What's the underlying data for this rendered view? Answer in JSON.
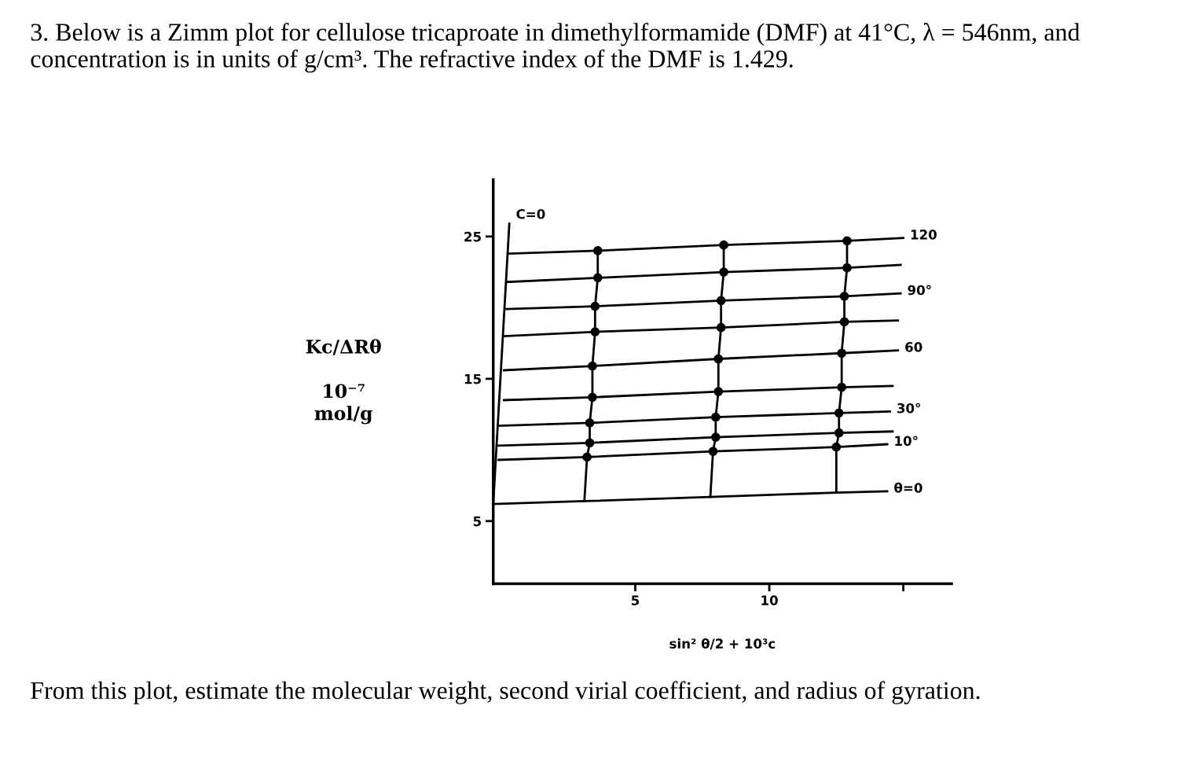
{
  "chart_data": {
    "type": "line",
    "title": "3. Below is a Zimm plot for cellulose tricaproate in dimethylformamide (DMF) at 41°C, λ = 546nm, and concentration is in units of g/cm³. The refractive index of the DMF is 1.429.",
    "xlabel": "sin² θ/2 + 10³c",
    "ylabel": "Kc/ΔRθ\n\n10⁻⁷\nmol/g",
    "xlim": [
      -0.3,
      16.8
    ],
    "ylim": [
      0.6,
      29
    ],
    "xticks": [
      5,
      10,
      {
        "value": 15,
        "label": null
      }
    ],
    "yticks": [
      5,
      15,
      25
    ],
    "grid": false,
    "legend": false,
    "series": [
      {
        "color": "#000000",
        "marker": "none",
        "x": [
          0.3,
          3.6,
          8.3,
          12.9,
          15.0
        ],
        "values": [
          23.8,
          24.0,
          24.4,
          24.7,
          24.9
        ]
      },
      {
        "color": "#000000",
        "marker": "none",
        "x": [
          0.2,
          3.6,
          8.3,
          12.9,
          14.9
        ],
        "values": [
          21.8,
          22.1,
          22.5,
          22.8,
          23.0
        ]
      },
      {
        "color": "#000000",
        "marker": "none",
        "x": [
          0.2,
          3.5,
          8.2,
          12.8,
          14.9
        ],
        "values": [
          19.9,
          20.1,
          20.5,
          20.8,
          21.0
        ]
      },
      {
        "color": "#000000",
        "marker": "none",
        "x": [
          0.1,
          3.5,
          8.2,
          12.8,
          14.8
        ],
        "values": [
          18.0,
          18.3,
          18.6,
          19.0,
          19.1
        ]
      },
      {
        "color": "#000000",
        "marker": "none",
        "x": [
          0.1,
          3.4,
          8.1,
          12.7,
          14.8
        ],
        "values": [
          15.6,
          15.9,
          16.4,
          16.8,
          17.0
        ]
      },
      {
        "color": "#000000",
        "marker": "none",
        "x": [
          0.1,
          3.4,
          8.1,
          12.7,
          14.6
        ],
        "values": [
          13.5,
          13.7,
          14.1,
          14.4,
          14.5
        ]
      },
      {
        "color": "#000000",
        "marker": "none",
        "x": [
          -0.1,
          3.3,
          8.0,
          12.6,
          14.5
        ],
        "values": [
          11.7,
          11.9,
          12.3,
          12.6,
          12.7
        ]
      },
      {
        "color": "#000000",
        "marker": "none",
        "x": [
          -0.1,
          3.3,
          8.0,
          12.6,
          14.6
        ],
        "values": [
          10.3,
          10.5,
          10.9,
          11.2,
          11.3
        ]
      },
      {
        "color": "#000000",
        "marker": "none",
        "x": [
          -0.1,
          3.2,
          7.9,
          12.5,
          14.4
        ],
        "values": [
          9.3,
          9.5,
          9.9,
          10.2,
          10.4
        ]
      },
      {
        "color": "#000000",
        "marker": "none",
        "x": [
          -0.3,
          3.1,
          7.8,
          12.5,
          14.4
        ],
        "values": [
          6.2,
          6.4,
          6.7,
          7.0,
          7.1
        ]
      },
      {
        "color": "#000000",
        "marker": "none",
        "x": [
          0.3,
          -0.3
        ],
        "values": [
          25.9,
          6.2
        ]
      },
      {
        "color": "#000000",
        "marker": "none",
        "x": [
          3.6,
          3.6,
          3.5,
          3.5,
          3.4,
          3.4,
          3.3,
          3.3,
          3.2,
          3.1
        ],
        "values": [
          24.0,
          22.1,
          20.1,
          18.3,
          15.9,
          13.7,
          11.9,
          10.5,
          9.5,
          6.4
        ]
      },
      {
        "color": "#000000",
        "marker": "none",
        "x": [
          8.3,
          8.3,
          8.2,
          8.2,
          8.1,
          8.1,
          8.0,
          8.0,
          7.9,
          7.8
        ],
        "values": [
          24.4,
          22.5,
          20.5,
          18.6,
          16.4,
          14.1,
          12.3,
          10.9,
          9.9,
          6.7
        ]
      },
      {
        "color": "#000000",
        "marker": "none",
        "x": [
          12.9,
          12.9,
          12.8,
          12.8,
          12.7,
          12.7,
          12.6,
          12.6,
          12.5,
          12.5
        ],
        "values": [
          24.7,
          22.8,
          20.8,
          19.0,
          16.8,
          14.4,
          12.6,
          11.2,
          10.2,
          7.0
        ]
      },
      {
        "type": "scatter",
        "color": "#000000",
        "marker": "circle",
        "x": [
          3.6,
          3.6,
          3.5,
          3.5,
          3.4,
          3.4,
          3.3,
          3.3,
          3.2,
          8.3,
          8.3,
          8.2,
          8.2,
          8.1,
          8.1,
          8.0,
          8.0,
          7.9,
          12.9,
          12.9,
          12.8,
          12.8,
          12.7,
          12.7,
          12.6,
          12.6,
          12.5
        ],
        "values": [
          24.0,
          22.1,
          20.1,
          18.3,
          15.9,
          13.7,
          11.9,
          10.5,
          9.5,
          24.4,
          22.5,
          20.5,
          18.6,
          16.4,
          14.1,
          12.3,
          10.9,
          9.9,
          24.7,
          22.8,
          20.8,
          19.0,
          16.8,
          14.4,
          12.6,
          11.2,
          10.2
        ]
      }
    ],
    "annotations": [
      {
        "text": "C=0",
        "x": 0.3,
        "y": 25.9
      },
      {
        "text": "120",
        "x": 15.0,
        "y": 24.9
      },
      {
        "text": "90°",
        "x": 14.9,
        "y": 21.0
      },
      {
        "text": "60",
        "x": 14.8,
        "y": 17.0
      },
      {
        "text": "30°",
        "x": 14.5,
        "y": 12.7
      },
      {
        "text": "10°",
        "x": 14.4,
        "y": 10.4
      },
      {
        "text": "θ=0",
        "x": 14.4,
        "y": 7.1
      },
      "From this plot, estimate the molecular weight, second virial coefficient, and radius of gyration."
    ]
  }
}
